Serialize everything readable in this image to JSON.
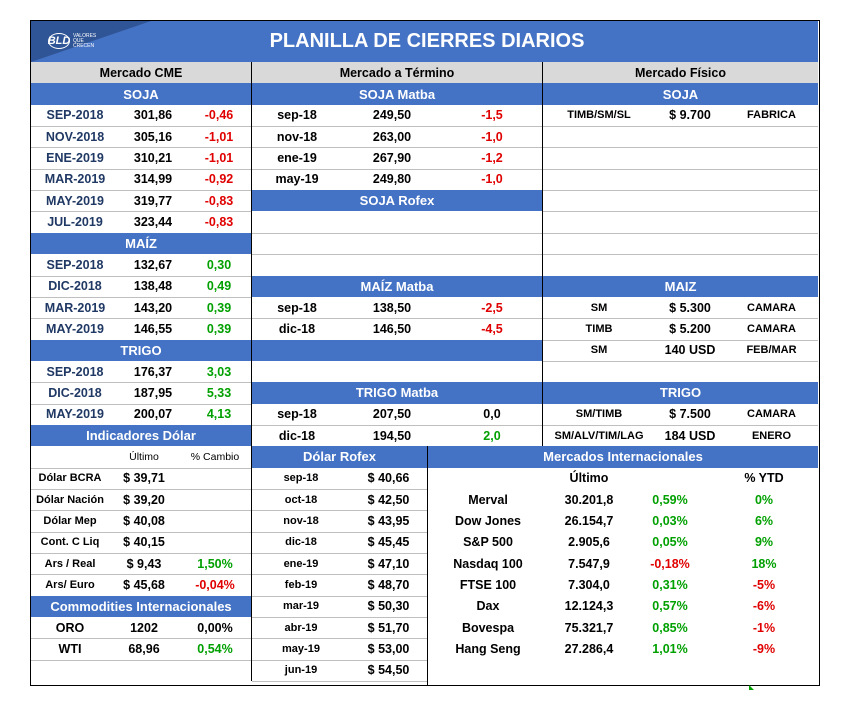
{
  "header": {
    "logo_mark": "BLD",
    "logo_sub": "VALORES QUE CRECEN",
    "title": "PLANILLA DE CIERRES DIARIOS"
  },
  "colors": {
    "accent": "#4472c4",
    "negative": "#e00000",
    "positive": "#00a000",
    "header_gray": "#d9d9d9"
  },
  "cme": {
    "title": "Mercado CME",
    "soja_title": "SOJA",
    "soja": [
      {
        "c": "SEP-2018",
        "v": "301,86",
        "d": "-0,46",
        "s": "neg"
      },
      {
        "c": "NOV-2018",
        "v": "305,16",
        "d": "-1,01",
        "s": "neg"
      },
      {
        "c": "ENE-2019",
        "v": "310,21",
        "d": "-1,01",
        "s": "neg"
      },
      {
        "c": "MAR-2019",
        "v": "314,99",
        "d": "-0,92",
        "s": "neg"
      },
      {
        "c": "MAY-2019",
        "v": "319,77",
        "d": "-0,83",
        "s": "neg"
      },
      {
        "c": "JUL-2019",
        "v": "323,44",
        "d": "-0,83",
        "s": "neg"
      }
    ],
    "maiz_title": "MAÍZ",
    "maiz": [
      {
        "c": "SEP-2018",
        "v": "132,67",
        "d": "0,30",
        "s": "pos"
      },
      {
        "c": "DIC-2018",
        "v": "138,48",
        "d": "0,49",
        "s": "pos"
      },
      {
        "c": "MAR-2019",
        "v": "143,20",
        "d": "0,39",
        "s": "pos"
      },
      {
        "c": "MAY-2019",
        "v": "146,55",
        "d": "0,39",
        "s": "pos"
      }
    ],
    "trigo_title": "TRIGO",
    "trigo": [
      {
        "c": "SEP-2018",
        "v": "176,37",
        "d": "3,03",
        "s": "pos"
      },
      {
        "c": "DIC-2018",
        "v": "187,95",
        "d": "5,33",
        "s": "pos"
      },
      {
        "c": "MAY-2019",
        "v": "200,07",
        "d": "4,13",
        "s": "pos"
      }
    ]
  },
  "termino": {
    "title": "Mercado a Término",
    "soja_matba_title": "SOJA Matba",
    "soja_matba": [
      {
        "c": "sep-18",
        "v": "249,50",
        "d": "-1,5",
        "s": "neg"
      },
      {
        "c": "nov-18",
        "v": "263,00",
        "d": "-1,0",
        "s": "neg"
      },
      {
        "c": "ene-19",
        "v": "267,90",
        "d": "-1,2",
        "s": "neg"
      },
      {
        "c": "may-19",
        "v": "249,80",
        "d": "-1,0",
        "s": "neg"
      }
    ],
    "soja_rofex_title": "SOJA Rofex",
    "maiz_matba_title": "MAÍZ Matba",
    "maiz_matba": [
      {
        "c": "sep-18",
        "v": "138,50",
        "d": "-2,5",
        "s": "neg"
      },
      {
        "c": "dic-18",
        "v": "146,50",
        "d": "-4,5",
        "s": "neg"
      }
    ],
    "trigo_matba_title": "TRIGO Matba",
    "trigo_matba": [
      {
        "c": "sep-18",
        "v": "207,50",
        "d": "0,0",
        "s": "neutral"
      },
      {
        "c": "dic-18",
        "v": "194,50",
        "d": "2,0",
        "s": "pos"
      }
    ]
  },
  "fisico": {
    "title": "Mercado Físico",
    "soja_title": "SOJA",
    "soja": [
      {
        "t": "TIMB/SM/SL",
        "p": "$ 9.700",
        "l": "FABRICA"
      }
    ],
    "maiz_title": "MAIZ",
    "maiz": [
      {
        "t": "SM",
        "p": "$ 5.300",
        "l": "CAMARA"
      },
      {
        "t": "TIMB",
        "p": "$ 5.200",
        "l": "CAMARA"
      },
      {
        "t": "SM",
        "p": "140 USD",
        "l": "FEB/MAR"
      }
    ],
    "trigo_title": "TRIGO",
    "trigo": [
      {
        "t": "SM/TIMB",
        "p": "$ 7.500",
        "l": "CAMARA"
      },
      {
        "t": "SM/ALV/TIM/LAG",
        "p": "184 USD",
        "l": "ENERO"
      }
    ]
  },
  "dolar": {
    "title": "Indicadores Dólar",
    "col_last": "Último",
    "col_change": "% Cambio",
    "rows": [
      {
        "n": "Dólar BCRA",
        "v": "$ 39,71",
        "d": "",
        "s": ""
      },
      {
        "n": "Dólar Nación",
        "v": "$ 39,20",
        "d": "",
        "s": ""
      },
      {
        "n": "Dólar Mep",
        "v": "$ 40,08",
        "d": "",
        "s": ""
      },
      {
        "n": "Cont. C Liq",
        "v": "$ 40,15",
        "d": "",
        "s": ""
      },
      {
        "n": "Ars / Real",
        "v": "$ 9,43",
        "d": "1,50%",
        "s": "pos"
      },
      {
        "n": "Ars/ Euro",
        "v": "$ 45,68",
        "d": "-0,04%",
        "s": "neg"
      }
    ]
  },
  "commodities": {
    "title": "Commodities Internacionales",
    "rows": [
      {
        "n": "ORO",
        "v": "1202",
        "d": "0,00%",
        "s": "neutral"
      },
      {
        "n": "WTI",
        "v": "68,96",
        "d": "0,54%",
        "s": "pos"
      }
    ]
  },
  "rofex": {
    "title": "Dólar Rofex",
    "rows": [
      {
        "c": "sep-18",
        "v": "$ 40,66"
      },
      {
        "c": "oct-18",
        "v": "$ 42,50"
      },
      {
        "c": "nov-18",
        "v": "$ 43,95"
      },
      {
        "c": "dic-18",
        "v": "$ 45,45"
      },
      {
        "c": "ene-19",
        "v": "$ 47,10"
      },
      {
        "c": "feb-19",
        "v": "$ 48,70"
      },
      {
        "c": "mar-19",
        "v": "$ 50,30"
      },
      {
        "c": "abr-19",
        "v": "$ 51,70"
      },
      {
        "c": "may-19",
        "v": "$ 53,00"
      },
      {
        "c": "jun-19",
        "v": "$ 54,50"
      }
    ]
  },
  "internacionales": {
    "title": "Mercados Internacionales",
    "col_last": "Último",
    "col_ytd": "% YTD",
    "rows": [
      {
        "n": "Merval",
        "v": "30.201,8",
        "d": "0,59%",
        "ds": "pos",
        "y": "0%",
        "ys": "pos"
      },
      {
        "n": "Dow Jones",
        "v": "26.154,7",
        "d": "0,03%",
        "ds": "pos",
        "y": "6%",
        "ys": "pos"
      },
      {
        "n": "S&P 500",
        "v": "2.905,6",
        "d": "0,05%",
        "ds": "pos",
        "y": "9%",
        "ys": "pos"
      },
      {
        "n": "Nasdaq 100",
        "v": "7.547,9",
        "d": "-0,18%",
        "ds": "neg",
        "y": "18%",
        "ys": "pos"
      },
      {
        "n": "FTSE 100",
        "v": "7.304,0",
        "d": "0,31%",
        "ds": "pos",
        "y": "-5%",
        "ys": "neg"
      },
      {
        "n": "Dax",
        "v": "12.124,3",
        "d": "0,57%",
        "ds": "pos",
        "y": "-6%",
        "ys": "neg"
      },
      {
        "n": "Bovespa",
        "v": "75.321,7",
        "d": "0,85%",
        "ds": "pos",
        "y": "-1%",
        "ys": "neg"
      },
      {
        "n": "Hang Seng",
        "v": "27.286,4",
        "d": "1,01%",
        "ds": "pos",
        "y": "-9%",
        "ys": "neg"
      }
    ]
  }
}
